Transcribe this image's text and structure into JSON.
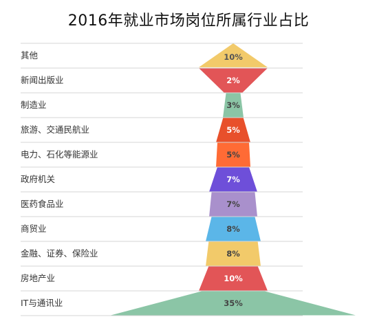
{
  "chart_data": {
    "type": "bar",
    "title": "2016年就业市场岗位所属行业占比",
    "categories": [
      "其他",
      "新闻出版业",
      "制造业",
      "旅游、交通民航业",
      "电力、石化等能源业",
      "政府机关",
      "医药食品业",
      "商贸业",
      "金融、证券、保险业",
      "房地产业",
      "IT与通讯业"
    ],
    "values": [
      10,
      2,
      3,
      5,
      5,
      7,
      7,
      8,
      8,
      10,
      35
    ],
    "value_labels": [
      "10%",
      "2%",
      "3%",
      "5%",
      "5%",
      "7%",
      "7%",
      "8%",
      "8%",
      "10%",
      "35%"
    ],
    "colors": [
      "#F2CA6A",
      "#E25557",
      "#8BC5A6",
      "#E8502B",
      "#FF6B35",
      "#6E4FD9",
      "#A990CC",
      "#5BB6E8",
      "#F2CA6A",
      "#E25557",
      "#8BC5A6"
    ],
    "label_colors": [
      "#555555",
      "#ffffff",
      "#444444",
      "#ffffff",
      "#444444",
      "#ffffff",
      "#444444",
      "#444444",
      "#444444",
      "#ffffff",
      "#444444"
    ],
    "grid": true
  }
}
